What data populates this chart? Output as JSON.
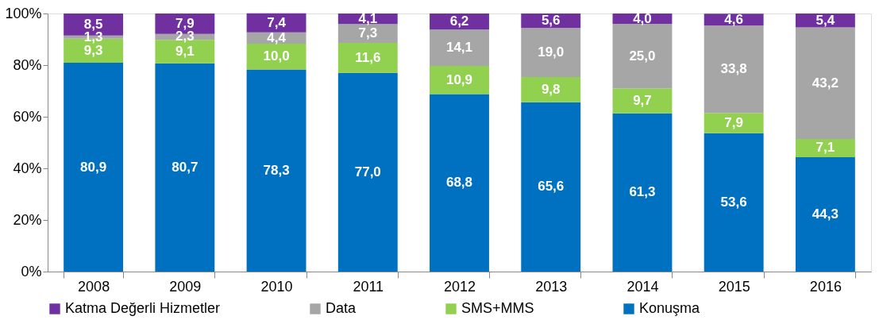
{
  "chart_data": {
    "type": "bar",
    "stacked": true,
    "categories": [
      "2008",
      "2009",
      "2010",
      "2011",
      "2012",
      "2013",
      "2014",
      "2015",
      "2016"
    ],
    "series": [
      {
        "name": "Konuşma",
        "color": "#0070c0",
        "values": [
          80.9,
          80.7,
          78.3,
          77.0,
          68.8,
          65.6,
          61.3,
          53.6,
          44.3
        ],
        "value_labels": [
          "80,9",
          "80,7",
          "78,3",
          "77,0",
          "68,8",
          "65,6",
          "61,3",
          "53,6",
          "44,3"
        ]
      },
      {
        "name": "SMS+MMS",
        "color": "#92d050",
        "values": [
          9.3,
          9.1,
          10.0,
          11.6,
          10.9,
          9.8,
          9.7,
          7.9,
          7.1
        ],
        "value_labels": [
          "9,3",
          "9,1",
          "10,0",
          "11,6",
          "10,9",
          "9,8",
          "9,7",
          "7,9",
          "7,1"
        ]
      },
      {
        "name": "Data",
        "color": "#a6a6a6",
        "values": [
          1.3,
          2.3,
          4.4,
          7.3,
          14.1,
          19.0,
          25.0,
          33.8,
          43.2
        ],
        "value_labels": [
          "1,3",
          "2,3",
          "4,4",
          "7,3",
          "14,1",
          "19,0",
          "25,0",
          "33,8",
          "43,2"
        ]
      },
      {
        "name": "Katma Değerli Hizmetler",
        "color": "#7030a0",
        "values": [
          8.5,
          7.9,
          7.4,
          4.1,
          6.2,
          5.6,
          4.0,
          4.6,
          5.4
        ],
        "value_labels": [
          "8,5",
          "7,9",
          "7,4",
          "4,1",
          "6,2",
          "5,6",
          "4,0",
          "4,6",
          "5,4"
        ]
      }
    ],
    "ylim": [
      0,
      100
    ],
    "yticks": [
      {
        "value": 0,
        "label": "0%"
      },
      {
        "value": 20,
        "label": "20%"
      },
      {
        "value": 40,
        "label": "40%"
      },
      {
        "value": 60,
        "label": "60%"
      },
      {
        "value": 80,
        "label": "80%"
      },
      {
        "value": 100,
        "label": "100%"
      }
    ],
    "grid": false,
    "legend": "bottom"
  }
}
